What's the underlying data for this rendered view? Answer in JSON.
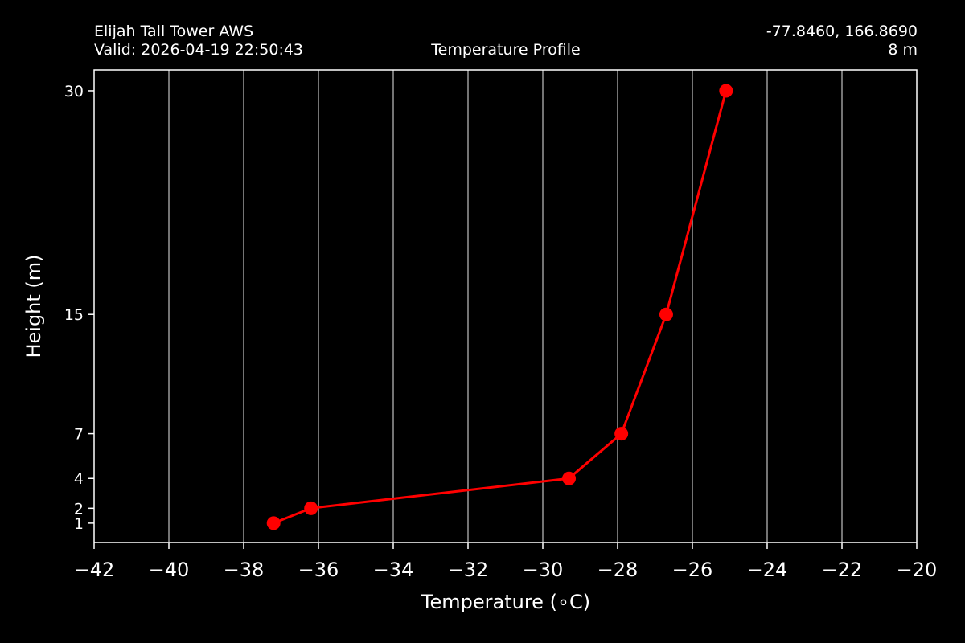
{
  "header": {
    "station": "Elijah Tall Tower AWS",
    "valid": "Valid: 2026-04-19 22:50:43",
    "title": "Temperature Profile",
    "coords": "-77.8460, 166.8690",
    "height": "8 m"
  },
  "chart_data": {
    "type": "line",
    "title": "Temperature Profile",
    "xlabel": "Temperature (∘C)",
    "ylabel": "Height (m)",
    "xlim": [
      -42,
      -20
    ],
    "ylim": [
      -0.3,
      31.4
    ],
    "x_ticks": [
      -42,
      -40,
      -38,
      -36,
      -34,
      -32,
      -30,
      -28,
      -26,
      -24,
      -22,
      -20
    ],
    "y_ticks": [
      1,
      2,
      4,
      7,
      15,
      30
    ],
    "grid": "vertical",
    "series": [
      {
        "color": "#ff0000",
        "marker": "circle",
        "points": [
          {
            "x": -37.2,
            "y": 1
          },
          {
            "x": -36.2,
            "y": 2
          },
          {
            "x": -29.3,
            "y": 4
          },
          {
            "x": -27.9,
            "y": 7
          },
          {
            "x": -26.7,
            "y": 15
          },
          {
            "x": -25.1,
            "y": 30
          }
        ]
      }
    ]
  }
}
